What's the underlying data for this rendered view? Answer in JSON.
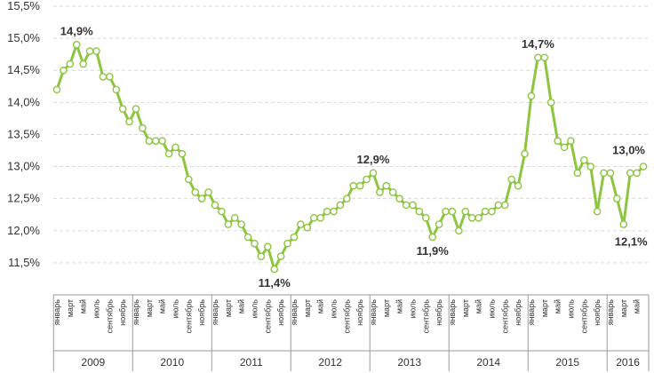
{
  "chart_data": {
    "type": "line",
    "ylim": [
      11.0,
      15.5
    ],
    "yticks": [
      "11,5%",
      "12,0%",
      "12,5%",
      "13,0%",
      "13,5%",
      "14,0%",
      "14,5%",
      "15,0%",
      "15,5%"
    ],
    "grid": true,
    "color": "#8cc63f",
    "x_labels": [
      "январь",
      "март",
      "май",
      "июль",
      "сентябрь",
      "ноябрь",
      "январь",
      "март",
      "май",
      "июль",
      "сентябрь",
      "ноябрь",
      "январь",
      "март",
      "май",
      "июль",
      "сентябрь",
      "ноябрь",
      "январь",
      "март",
      "май",
      "июль",
      "сентябрь",
      "ноябрь",
      "январь",
      "март",
      "май",
      "июль",
      "сентябрь",
      "ноябрь",
      "январь",
      "март",
      "май",
      "июль",
      "сентябрь",
      "ноябрь",
      "январь",
      "март",
      "май",
      "июль",
      "сентябрь",
      "ноябрь",
      "январь",
      "март",
      "май"
    ],
    "years": [
      "2009",
      "2010",
      "2011",
      "2012",
      "2013",
      "2014",
      "2015",
      "2016"
    ],
    "series": [
      {
        "values": [
          14.2,
          14.5,
          14.6,
          14.9,
          14.6,
          14.8,
          14.8,
          14.4,
          14.4,
          14.2,
          13.9,
          13.7,
          13.9,
          13.6,
          13.4,
          13.4,
          13.4,
          13.2,
          13.3,
          13.2,
          12.8,
          12.6,
          12.5,
          12.6,
          12.4,
          12.3,
          12.1,
          12.2,
          12.1,
          11.9,
          11.8,
          11.6,
          11.75,
          11.4,
          11.6,
          11.8,
          11.9,
          12.1,
          12.05,
          12.2,
          12.2,
          12.3,
          12.3,
          12.4,
          12.5,
          12.7,
          12.7,
          12.8,
          12.9,
          12.6,
          12.7,
          12.6,
          12.5,
          12.4,
          12.4,
          12.3,
          12.2,
          11.9,
          12.1,
          12.3,
          12.3,
          12.0,
          12.3,
          12.2,
          12.2,
          12.3,
          12.3,
          12.4,
          12.4,
          12.8,
          12.7,
          13.2,
          14.1,
          14.7,
          14.7,
          14.0,
          13.4,
          13.3,
          13.4,
          12.9,
          13.1,
          13.0,
          12.3,
          12.9,
          12.9,
          12.5,
          12.1,
          12.9,
          12.9,
          13.0
        ]
      }
    ],
    "annotations": [
      {
        "index": 3,
        "text": "14,9%"
      },
      {
        "index": 33,
        "text": "11,4%"
      },
      {
        "index": 48,
        "text": "12,9%"
      },
      {
        "index": 57,
        "text": "11,9%"
      },
      {
        "index": 73,
        "text": "14,7%"
      },
      {
        "index": 86,
        "text": "12,1%"
      },
      {
        "index": 89,
        "text": "13,0%"
      }
    ]
  }
}
